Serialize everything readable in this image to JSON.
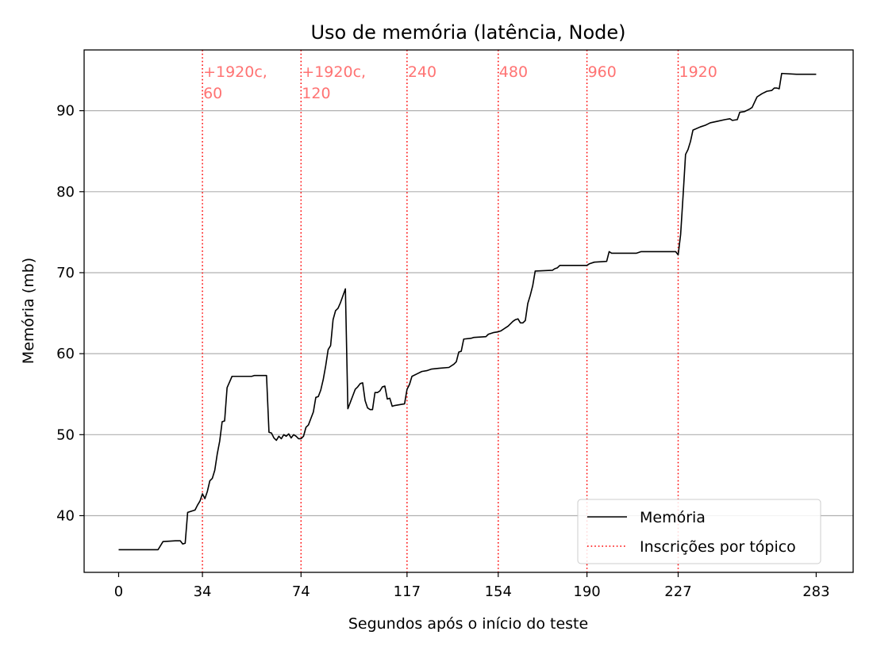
{
  "chart_data": {
    "type": "line",
    "title": "Uso de memória (latência, Node)",
    "xlabel": "Segundos após o início do teste",
    "ylabel": "Memória (mb)",
    "xlim": [
      -14,
      298
    ],
    "ylim": [
      33,
      97.5
    ],
    "xticks": [
      0,
      34,
      74,
      117,
      154,
      190,
      227,
      283
    ],
    "yticks": [
      40,
      50,
      60,
      70,
      80,
      90
    ],
    "grid": "y",
    "legend_placement": "lower-right",
    "series": [
      {
        "name": "Memória",
        "color": "#000000",
        "style": "solid",
        "points": [
          [
            0,
            35.8
          ],
          [
            16,
            35.8
          ],
          [
            18,
            36.8
          ],
          [
            23,
            36.9
          ],
          [
            25,
            36.9
          ],
          [
            26,
            36.5
          ],
          [
            27,
            36.6
          ],
          [
            28,
            40.4
          ],
          [
            31,
            40.7
          ],
          [
            32,
            41.3
          ],
          [
            33,
            41.8
          ],
          [
            34,
            42.7
          ],
          [
            35,
            42.1
          ],
          [
            36,
            43.0
          ],
          [
            37,
            44.3
          ],
          [
            38,
            44.6
          ],
          [
            39,
            45.6
          ],
          [
            40,
            47.6
          ],
          [
            41,
            49.2
          ],
          [
            42,
            51.6
          ],
          [
            43,
            51.7
          ],
          [
            44,
            55.8
          ],
          [
            45,
            56.5
          ],
          [
            46,
            57.2
          ],
          [
            54,
            57.2
          ],
          [
            55,
            57.3
          ],
          [
            60,
            57.3
          ],
          [
            61,
            50.3
          ],
          [
            62,
            50.2
          ],
          [
            63,
            49.6
          ],
          [
            64,
            49.3
          ],
          [
            65,
            49.8
          ],
          [
            66,
            49.5
          ],
          [
            67,
            50.0
          ],
          [
            68,
            49.8
          ],
          [
            69,
            50.1
          ],
          [
            70,
            49.6
          ],
          [
            71,
            50.0
          ],
          [
            72,
            49.8
          ],
          [
            73,
            49.5
          ],
          [
            74,
            49.5
          ],
          [
            75,
            49.8
          ],
          [
            76,
            50.9
          ],
          [
            77,
            51.2
          ],
          [
            78,
            52.0
          ],
          [
            79,
            52.8
          ],
          [
            80,
            54.6
          ],
          [
            81,
            54.7
          ],
          [
            82,
            55.5
          ],
          [
            83,
            56.8
          ],
          [
            84,
            58.5
          ],
          [
            85,
            60.5
          ],
          [
            86,
            61.0
          ],
          [
            87,
            64.2
          ],
          [
            88,
            65.3
          ],
          [
            89,
            65.6
          ],
          [
            90,
            66.3
          ],
          [
            92,
            68.0
          ],
          [
            93,
            53.2
          ],
          [
            94,
            54.0
          ],
          [
            95,
            54.8
          ],
          [
            96,
            55.6
          ],
          [
            97,
            55.9
          ],
          [
            98,
            56.3
          ],
          [
            99,
            56.4
          ],
          [
            100,
            54.2
          ],
          [
            101,
            53.3
          ],
          [
            102,
            53.1
          ],
          [
            103,
            53.1
          ],
          [
            104,
            55.2
          ],
          [
            105,
            55.2
          ],
          [
            106,
            55.4
          ],
          [
            107,
            55.9
          ],
          [
            108,
            56.0
          ],
          [
            109,
            54.4
          ],
          [
            110,
            54.5
          ],
          [
            111,
            53.5
          ],
          [
            112,
            53.6
          ],
          [
            116,
            53.8
          ],
          [
            117,
            55.6
          ],
          [
            118,
            56.2
          ],
          [
            119,
            57.2
          ],
          [
            121,
            57.5
          ],
          [
            123,
            57.8
          ],
          [
            125,
            57.9
          ],
          [
            127,
            58.1
          ],
          [
            130,
            58.2
          ],
          [
            134,
            58.3
          ],
          [
            136,
            58.7
          ],
          [
            137,
            59.0
          ],
          [
            138,
            60.2
          ],
          [
            139,
            60.3
          ],
          [
            140,
            61.8
          ],
          [
            143,
            61.9
          ],
          [
            144,
            62.0
          ],
          [
            149,
            62.1
          ],
          [
            150,
            62.4
          ],
          [
            152,
            62.6
          ],
          [
            154,
            62.7
          ],
          [
            155,
            62.8
          ],
          [
            157,
            63.2
          ],
          [
            158,
            63.4
          ],
          [
            160,
            64.0
          ],
          [
            161,
            64.2
          ],
          [
            162,
            64.3
          ],
          [
            163,
            63.8
          ],
          [
            164,
            63.8
          ],
          [
            165,
            64.1
          ],
          [
            166,
            66.2
          ],
          [
            167,
            67.2
          ],
          [
            168,
            68.4
          ],
          [
            169,
            70.2
          ],
          [
            176,
            70.3
          ],
          [
            177,
            70.5
          ],
          [
            178,
            70.6
          ],
          [
            179,
            70.9
          ],
          [
            190,
            70.9
          ],
          [
            191,
            71.1
          ],
          [
            193,
            71.3
          ],
          [
            198,
            71.4
          ],
          [
            199,
            72.6
          ],
          [
            200,
            72.4
          ],
          [
            210,
            72.4
          ],
          [
            212,
            72.6
          ],
          [
            226,
            72.6
          ],
          [
            227,
            72.2
          ],
          [
            228,
            74.7
          ],
          [
            229,
            79.5
          ],
          [
            230,
            84.6
          ],
          [
            231,
            85.2
          ],
          [
            232,
            86.2
          ],
          [
            233,
            87.6
          ],
          [
            236,
            88.0
          ],
          [
            238,
            88.2
          ],
          [
            240,
            88.5
          ],
          [
            243,
            88.7
          ],
          [
            246,
            88.9
          ],
          [
            248,
            89.0
          ],
          [
            249,
            88.8
          ],
          [
            251,
            88.9
          ],
          [
            252,
            89.8
          ],
          [
            254,
            89.9
          ],
          [
            256,
            90.2
          ],
          [
            257,
            90.4
          ],
          [
            259,
            91.7
          ],
          [
            261,
            92.1
          ],
          [
            263,
            92.4
          ],
          [
            265,
            92.5
          ],
          [
            266,
            92.8
          ],
          [
            267,
            92.8
          ],
          [
            268,
            92.7
          ],
          [
            269,
            94.6
          ],
          [
            275,
            94.5
          ],
          [
            283,
            94.5
          ]
        ]
      }
    ],
    "markers": {
      "name": "Inscrições por tópico",
      "color": "#ff0000",
      "style": "dotted",
      "lines": [
        {
          "x": 34,
          "label_line1": "+1920c,",
          "label_line2": "60"
        },
        {
          "x": 74,
          "label_line1": "+1920c,",
          "label_line2": "120"
        },
        {
          "x": 117,
          "label_line1": "240",
          "label_line2": ""
        },
        {
          "x": 154,
          "label_line1": "480",
          "label_line2": ""
        },
        {
          "x": 190,
          "label_line1": "960",
          "label_line2": ""
        },
        {
          "x": 227,
          "label_line1": "1920",
          "label_line2": ""
        }
      ]
    }
  }
}
